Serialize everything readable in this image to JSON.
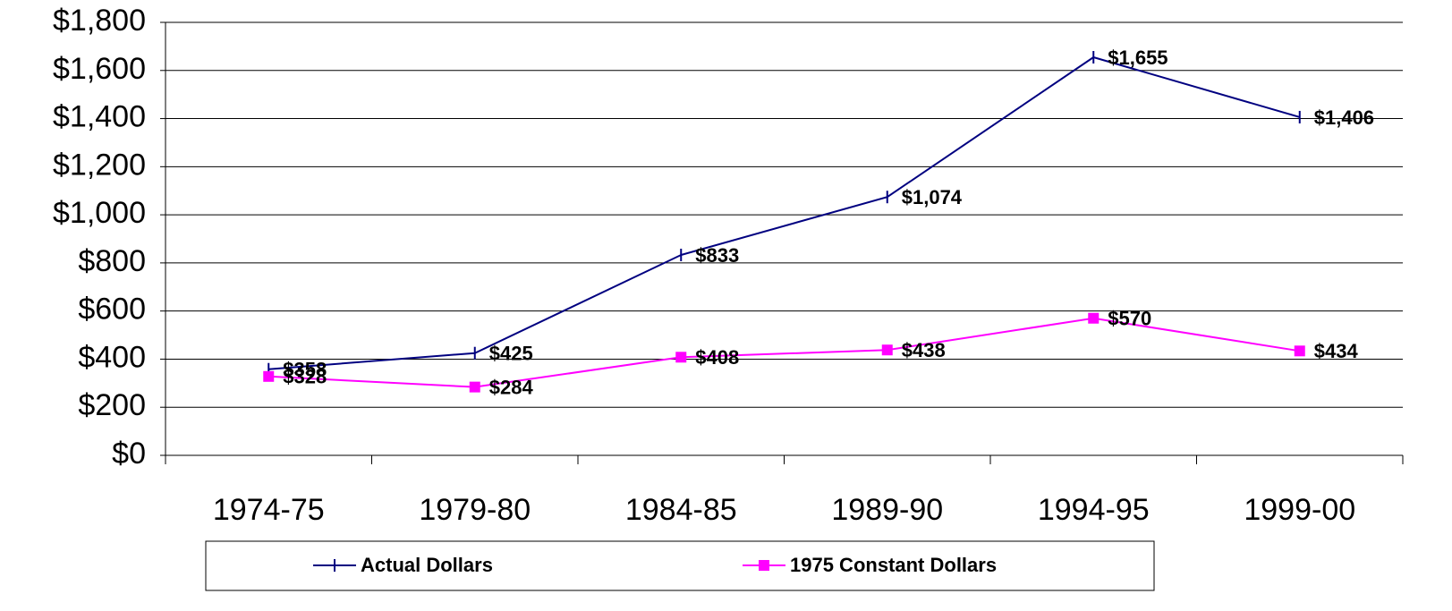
{
  "chart_data": {
    "type": "line",
    "categories": [
      "1974-75",
      "1979-80",
      "1984-85",
      "1989-90",
      "1994-95",
      "1999-00"
    ],
    "series": [
      {
        "name": "Actual Dollars",
        "color": "#000080",
        "marker": "tick",
        "values": [
          358,
          425,
          833,
          1074,
          1655,
          1406
        ],
        "value_labels": [
          "$358",
          "$425",
          "$833",
          "$1,074",
          "$1,655",
          "$1,406"
        ]
      },
      {
        "name": "1975 Constant Dollars",
        "color": "#ff00ff",
        "marker": "square",
        "values": [
          328,
          284,
          408,
          438,
          570,
          434
        ],
        "value_labels": [
          "$328",
          "$284",
          "$408",
          "$438",
          "$570",
          "$434"
        ]
      }
    ],
    "ylim": [
      0,
      1800
    ],
    "yticks": [
      {
        "value": 0,
        "label": "$0"
      },
      {
        "value": 200,
        "label": "$200"
      },
      {
        "value": 400,
        "label": "$400"
      },
      {
        "value": 600,
        "label": "$600"
      },
      {
        "value": 800,
        "label": "$800"
      },
      {
        "value": 1000,
        "label": "$1,000"
      },
      {
        "value": 1200,
        "label": "$1,200"
      },
      {
        "value": 1400,
        "label": "$1,400"
      },
      {
        "value": 1600,
        "label": "$1,600"
      },
      {
        "value": 1800,
        "label": "$1,800"
      }
    ],
    "grid": true,
    "legend": "bottom"
  }
}
